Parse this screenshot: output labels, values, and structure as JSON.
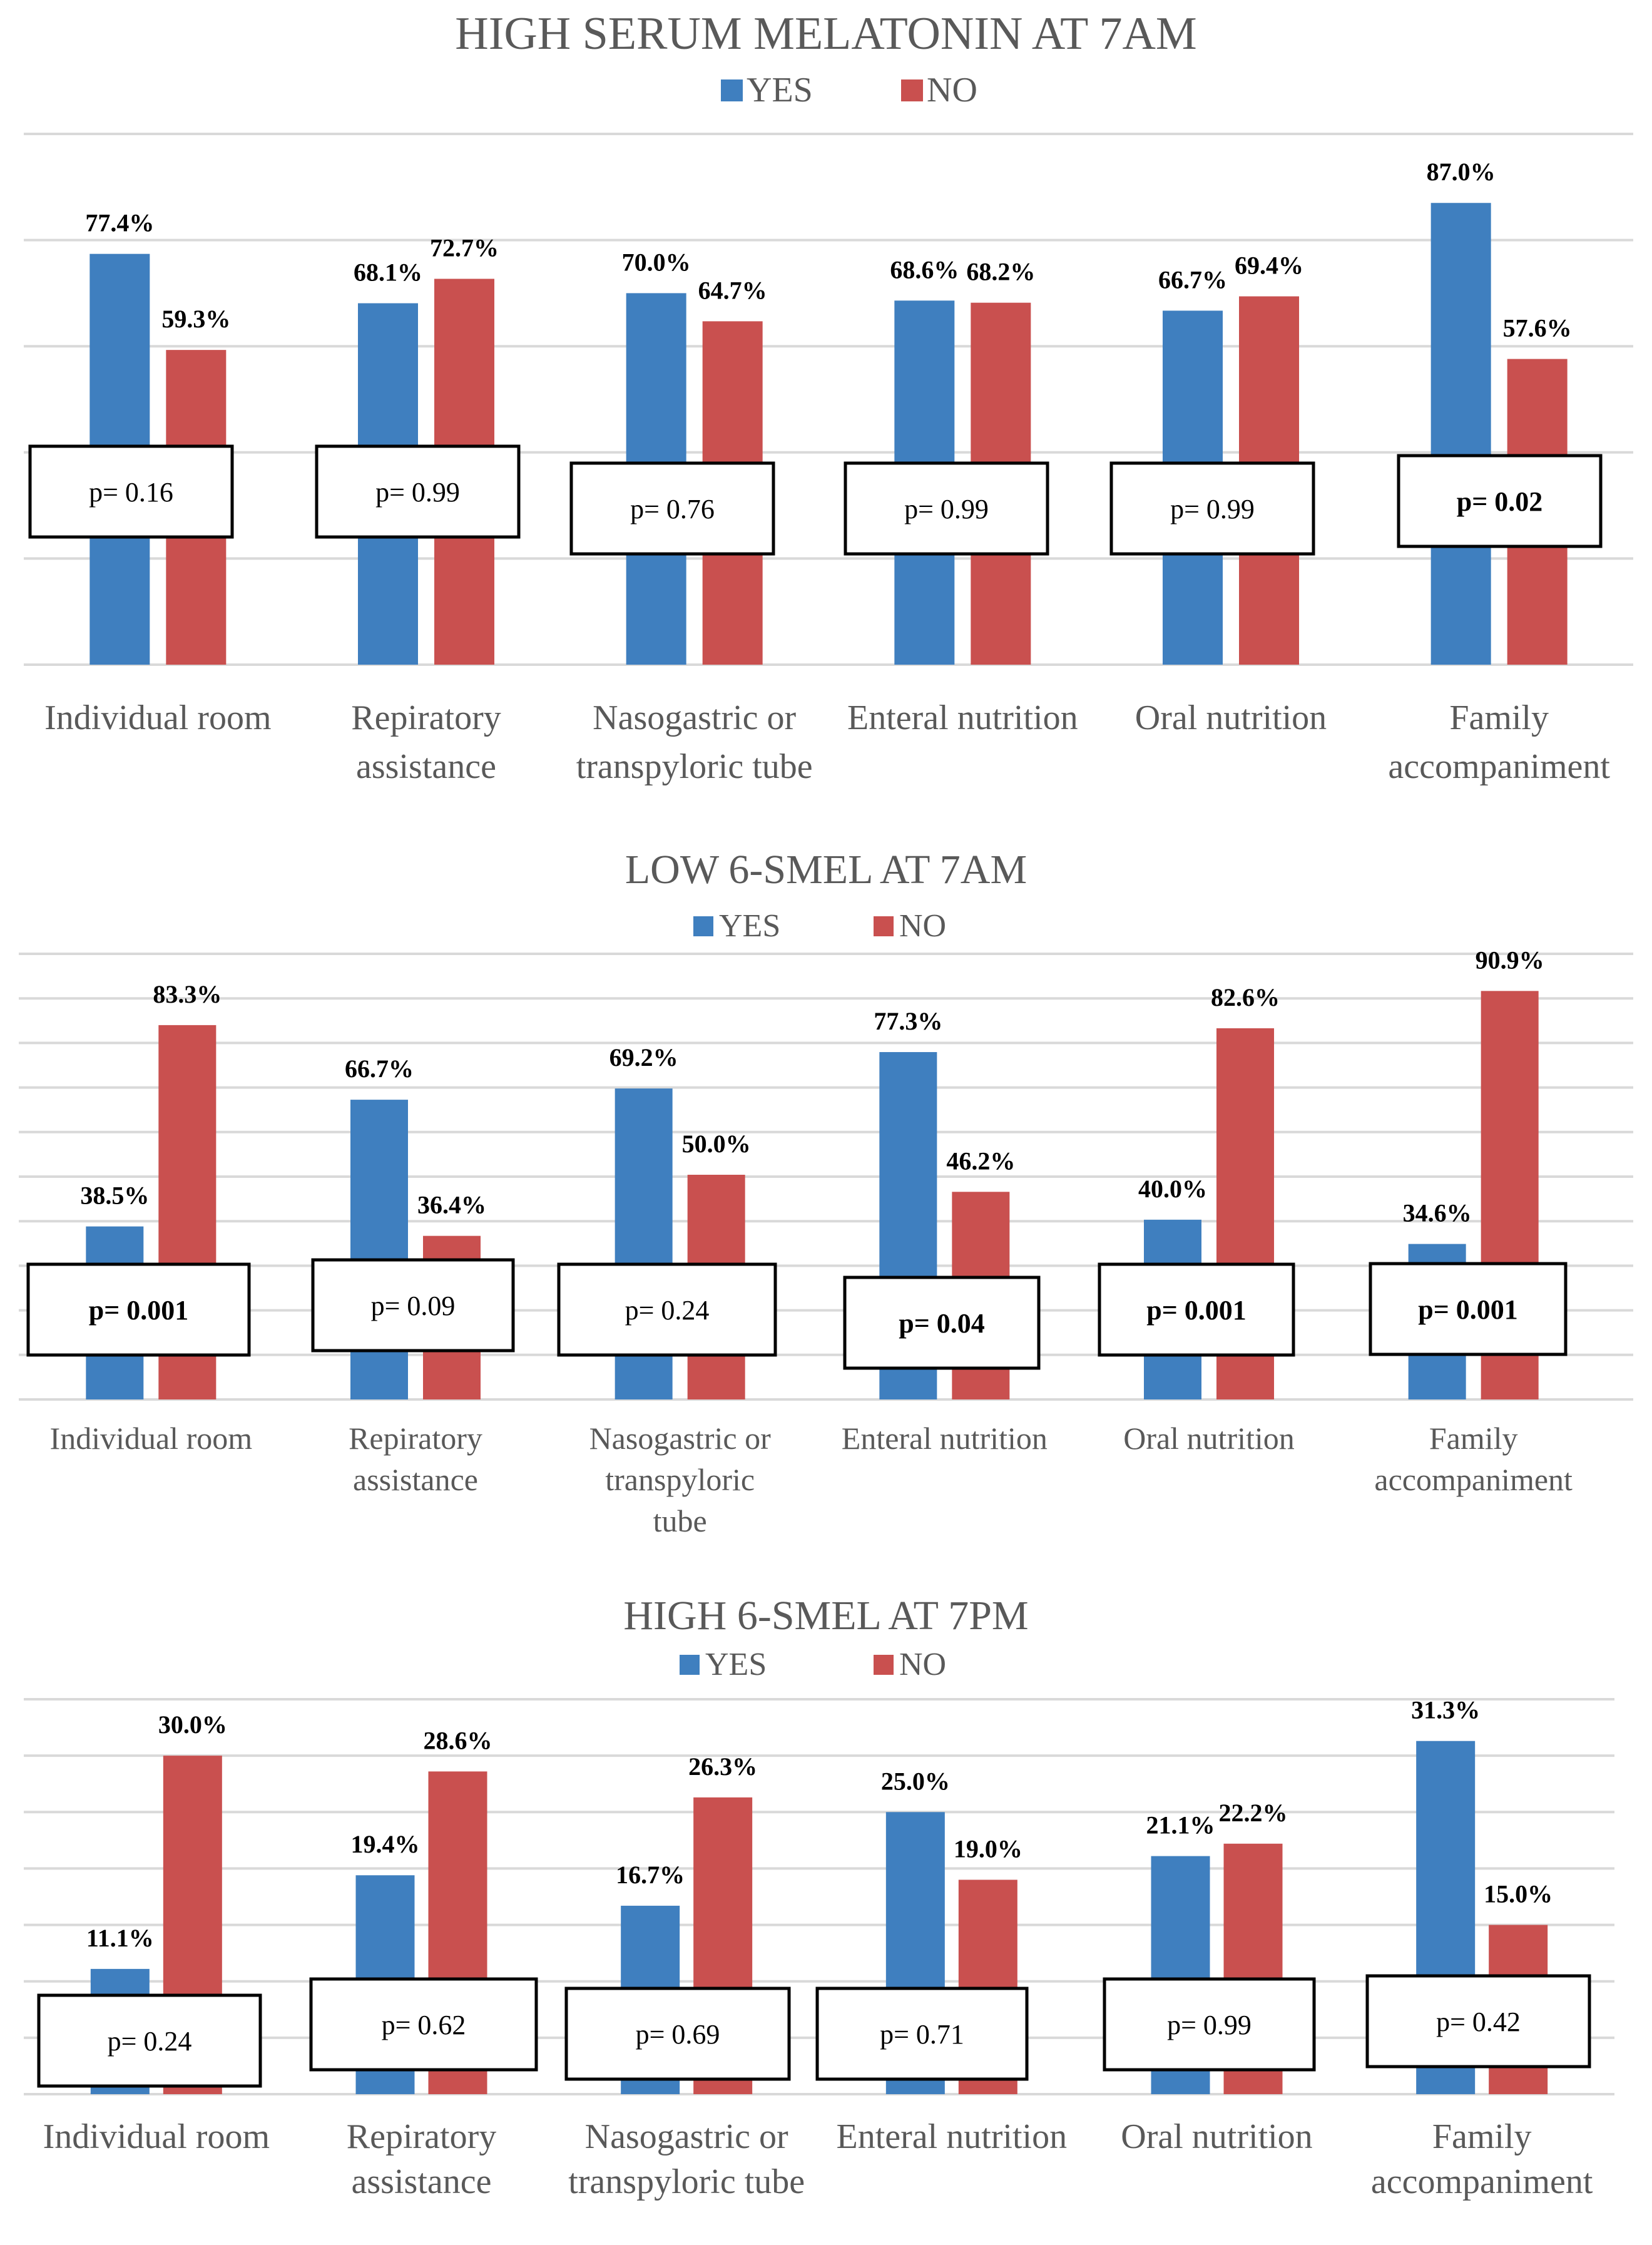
{
  "colors": {
    "yes": "#3f7fbf",
    "no": "#c9504f",
    "text": "#595959",
    "grid": "#d9d9d9"
  },
  "chart_data": [
    {
      "type": "bar",
      "title": "HIGH SERUM MELATONIN AT 7AM",
      "legend": {
        "placement": "top-center",
        "entries": [
          "YES",
          "NO"
        ]
      },
      "grid": true,
      "ylim": [
        0,
        100
      ],
      "categories": [
        {
          "lines": [
            "Individual room"
          ]
        },
        {
          "lines": [
            "Repiratory",
            "assistance"
          ]
        },
        {
          "lines": [
            "Nasogastric or",
            "transpyloric tube"
          ]
        },
        {
          "lines": [
            "Enteral nutrition"
          ]
        },
        {
          "lines": [
            "Oral nutrition"
          ]
        },
        {
          "lines": [
            "Family",
            "accompaniment"
          ]
        }
      ],
      "series": [
        {
          "name": "YES",
          "values": [
            77.4,
            68.1,
            70.0,
            68.6,
            66.7,
            87.0
          ],
          "labels": [
            "77.4%",
            "68.1%",
            "70.0%",
            "68.6%",
            "66.7%",
            "87.0%"
          ]
        },
        {
          "name": "NO",
          "values": [
            59.3,
            72.7,
            64.7,
            68.2,
            69.4,
            57.6
          ],
          "labels": [
            "59.3%",
            "72.7%",
            "64.7%",
            "68.2%",
            "69.4%",
            "57.6%"
          ]
        }
      ],
      "annotations": [
        {
          "text": "p= 0.16",
          "bold": false
        },
        {
          "text": "p= 0.99",
          "bold": false
        },
        {
          "text": "p= 0.76",
          "bold": false
        },
        {
          "text": "p= 0.99",
          "bold": false
        },
        {
          "text": "p= 0.99",
          "bold": false
        },
        {
          "text": "p= 0.02",
          "bold": true
        }
      ]
    },
    {
      "type": "bar",
      "title": "LOW 6-SMEL AT 7AM",
      "legend": {
        "placement": "top-center",
        "entries": [
          "YES",
          "NO"
        ]
      },
      "grid": true,
      "ylim": [
        0,
        100
      ],
      "categories": [
        {
          "lines": [
            "Individual room"
          ]
        },
        {
          "lines": [
            "Repiratory",
            "assistance"
          ]
        },
        {
          "lines": [
            "Nasogastric or",
            "transpyloric",
            "tube"
          ]
        },
        {
          "lines": [
            "Enteral nutrition"
          ]
        },
        {
          "lines": [
            "Oral nutrition"
          ]
        },
        {
          "lines": [
            "Family",
            "accompaniment"
          ]
        }
      ],
      "series": [
        {
          "name": "YES",
          "values": [
            38.5,
            66.7,
            69.2,
            77.3,
            40.0,
            34.6
          ],
          "labels": [
            "38.5%",
            "66.7%",
            "69.2%",
            "77.3%",
            "40.0%",
            "34.6%"
          ]
        },
        {
          "name": "NO",
          "values": [
            83.3,
            36.4,
            50.0,
            46.2,
            82.6,
            90.9
          ],
          "labels": [
            "83.3%",
            "36.4%",
            "50.0%",
            "46.2%",
            "82.6%",
            "90.9%"
          ]
        }
      ],
      "annotations": [
        {
          "text": "p= 0.001",
          "bold": true
        },
        {
          "text": "p= 0.09",
          "bold": false
        },
        {
          "text": "p= 0.24",
          "bold": false
        },
        {
          "text": "p= 0.04",
          "bold": true
        },
        {
          "text": "p= 0.001",
          "bold": true
        },
        {
          "text": "p= 0.001",
          "bold": true
        }
      ]
    },
    {
      "type": "bar",
      "title": "HIGH 6-SMEL AT 7PM",
      "legend": {
        "placement": "top-center",
        "entries": [
          "YES",
          "NO"
        ]
      },
      "grid": true,
      "ylim": [
        0,
        35
      ],
      "categories": [
        {
          "lines": [
            "Individual room"
          ]
        },
        {
          "lines": [
            "Repiratory",
            "assistance"
          ]
        },
        {
          "lines": [
            "Nasogastric or",
            "transpyloric tube"
          ]
        },
        {
          "lines": [
            "Enteral nutrition"
          ]
        },
        {
          "lines": [
            "Oral nutrition"
          ]
        },
        {
          "lines": [
            "Family",
            "accompaniment"
          ]
        }
      ],
      "series": [
        {
          "name": "YES",
          "values": [
            11.1,
            19.4,
            16.7,
            25.0,
            21.1,
            31.3
          ],
          "labels": [
            "11.1%",
            "19.4%",
            "16.7%",
            "25.0%",
            "21.1%",
            "31.3%"
          ]
        },
        {
          "name": "NO",
          "values": [
            30.0,
            28.6,
            26.3,
            19.0,
            22.2,
            15.0
          ],
          "labels": [
            "30.0%",
            "28.6%",
            "26.3%",
            "19.0%",
            "22.2%",
            "15.0%"
          ]
        }
      ],
      "annotations": [
        {
          "text": "p= 0.24",
          "bold": false
        },
        {
          "text": "p= 0.62",
          "bold": false
        },
        {
          "text": "p= 0.69",
          "bold": false
        },
        {
          "text": "p= 0.71",
          "bold": false
        },
        {
          "text": "p= 0.99",
          "bold": false
        },
        {
          "text": "p= 0.42",
          "bold": false
        }
      ]
    }
  ]
}
